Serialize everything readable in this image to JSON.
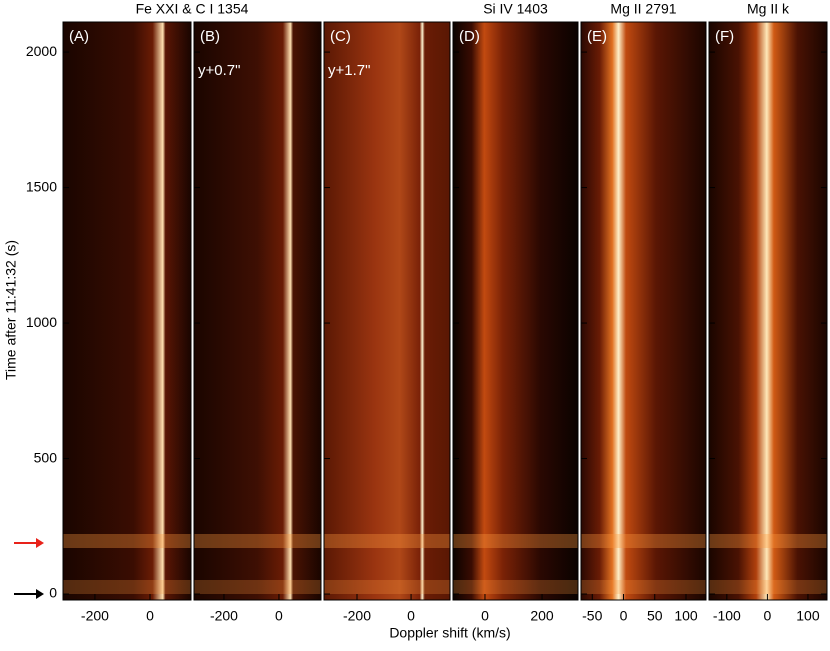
{
  "figure": {
    "y_label": "Time after 11:41:32 (s)",
    "x_label": "Doppler shift (km/s)",
    "ylim": [
      -22,
      2111
    ],
    "yticks": [
      0,
      500,
      1000,
      1500,
      2000
    ]
  },
  "chart_data": [
    {
      "type": "heatmap",
      "title": "Fe XXI & C I 1354",
      "label": "(A)",
      "xlim": [
        -316,
        149
      ],
      "xticks": [
        -200,
        0
      ]
    },
    {
      "type": "heatmap",
      "label": "(B)",
      "note": "y+0.7\"",
      "xlim": [
        -309,
        153
      ],
      "xticks": [
        -200,
        0
      ]
    },
    {
      "type": "heatmap",
      "label": "(C)",
      "note": "y+1.7\"",
      "xlim": [
        -322,
        144
      ],
      "xticks": [
        -200,
        0
      ]
    },
    {
      "type": "heatmap",
      "title": "Si IV 1403",
      "label": "(D)",
      "xlim": [
        -112,
        326
      ],
      "xticks": [
        0,
        200
      ]
    },
    {
      "type": "heatmap",
      "title": "Mg II 2791",
      "label": "(E)",
      "xlim": [
        -68,
        132
      ],
      "xticks": [
        -50,
        0,
        50,
        100
      ]
    },
    {
      "type": "heatmap",
      "title": "Mg II k",
      "label": "(F)",
      "xlim": [
        -144,
        147
      ],
      "xticks": [
        -100,
        0,
        100
      ]
    }
  ]
}
